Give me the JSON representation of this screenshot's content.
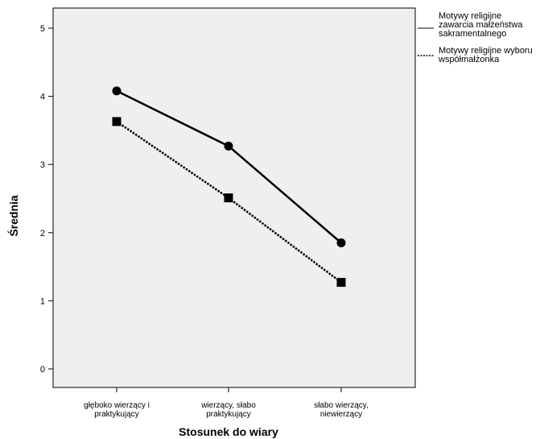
{
  "chart_data": {
    "type": "line",
    "categories": [
      "głęboko wierzący i praktykujący",
      "wierzący, słabo praktykujący",
      "słabo wierzący, niewierzący"
    ],
    "category_lines": [
      [
        "głęboko wierzący i",
        "praktykujący"
      ],
      [
        "wierzący, słabo",
        "praktykujący"
      ],
      [
        "słabo wierzący,",
        "niewierzący"
      ]
    ],
    "series": [
      {
        "name": "Motywy religijne zawarcia małżeństwa sakramentalnego",
        "name_lines": [
          "Motywy religijne",
          "zawarcia małżeństwa",
          "sakramentalnego"
        ],
        "values": [
          4.08,
          3.27,
          1.85
        ],
        "line_style": "solid",
        "marker": "circle",
        "color": "#000000"
      },
      {
        "name": "Motywy religijne wyboru współmałżonka",
        "name_lines": [
          "Motywy religijne wyboru",
          "współmałżonka"
        ],
        "values": [
          3.63,
          2.51,
          1.27
        ],
        "line_style": "dotted",
        "marker": "square",
        "color": "#000000"
      }
    ],
    "xlabel": "Stosunek do wiary",
    "ylabel": "Średnia",
    "ylim": [
      0,
      5
    ],
    "yticks": [
      "0",
      "1",
      "2",
      "3",
      "4",
      "5"
    ],
    "grid": false,
    "legend": "right",
    "plot_background": "#efefef"
  }
}
